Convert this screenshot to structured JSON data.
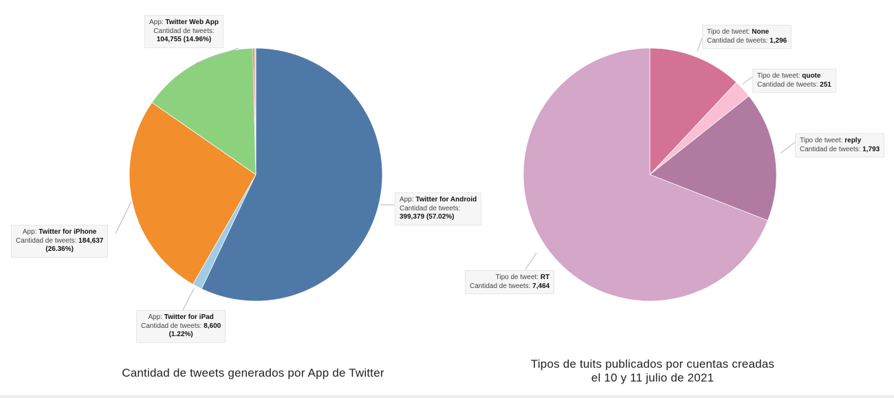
{
  "chart_data": [
    {
      "type": "pie",
      "title": "Cantidad de tweets generados por App de Twitter",
      "field_label": "App:",
      "measure_label": "Cantidad de tweets:",
      "slices": [
        {
          "label": "Twitter for Android",
          "value": 399379,
          "value_text": "399,379",
          "percent_text": "(57.02%)",
          "color": "#4e79a7"
        },
        {
          "label": "Twitter for iPad",
          "value": 8600,
          "value_text": "8,600",
          "percent_text": "(1.22%)",
          "color": "#a0cbe8"
        },
        {
          "label": "Twitter for iPhone",
          "value": 184637,
          "value_text": "184,637",
          "percent_text": "(26.36%)",
          "color": "#f28e2b"
        },
        {
          "label": "Twitter Web App",
          "value": 104755,
          "value_text": "104,755",
          "percent_text": "(14.96%)",
          "color": "#8cd17d"
        },
        {
          "label": "",
          "value": 1500,
          "color": "#e15759"
        },
        {
          "label": "",
          "value": 1100,
          "color": "#f1ce63"
        }
      ]
    },
    {
      "type": "pie",
      "title_lines": [
        "Tipos de tuits publicados por cuentas creadas",
        "el 10 y 11 julio de 2021"
      ],
      "field_label": "Tipo de tweet:",
      "measure_label": "Cantidad de tweets:",
      "slices": [
        {
          "label": "None",
          "value": 1296,
          "value_text": "1,296",
          "color": "#d37295"
        },
        {
          "label": "quote",
          "value": 251,
          "value_text": "251",
          "color": "#fabfd2"
        },
        {
          "label": "reply",
          "value": 1793,
          "value_text": "1,793",
          "color": "#b07aa1"
        },
        {
          "label": "RT",
          "value": 7464,
          "value_text": "7,464",
          "color": "#d4a6c8"
        }
      ]
    }
  ],
  "colors": {
    "leader_line": "#b5b5b5",
    "tooltip_bg": "#f6f6f6"
  }
}
